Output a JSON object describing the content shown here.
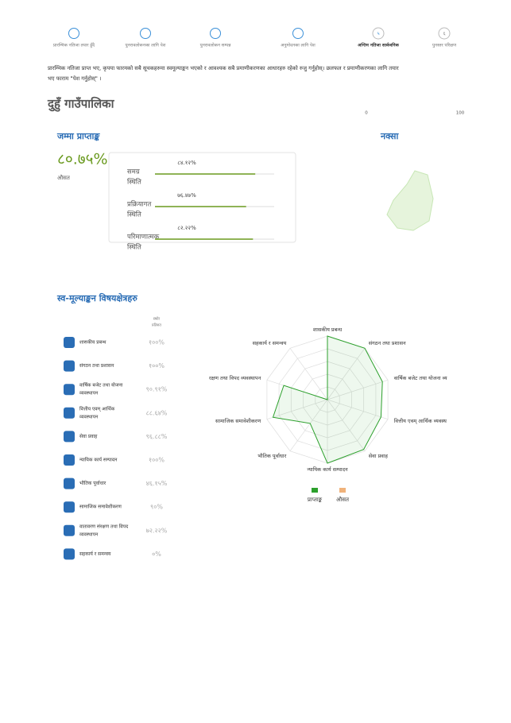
{
  "steps": [
    {
      "label": "प्रारम्भिक नतिजा तयार हुँदै"
    },
    {
      "label": "पुनरावलोकनका लागि पेश"
    },
    {
      "label": "पुनरावलोकन सम्पन्न"
    },
    {
      "label": "अनुमोदनका लागि पेश"
    },
    {
      "number": "५",
      "label": "अन्तिम नतिजा सार्वजनिक"
    },
    {
      "number": "६",
      "label": "पुनस्तर परिक्षण"
    }
  ],
  "intro": [
    "प्रारम्भिक नतिजा प्राप्त भए, कृपया फारमको सबै सूचकहरुमा स्वमूल्याङ्कन भएको र आवश्यक सबै प्रमाणीकरणका आधारहरु रहेको रुजु गर्नुहोस्। छलफल र प्रमाणीकरणका लागि तयार",
    "भए फाराम \"पेश गर्नुहोस्\" ।"
  ],
  "title": "दुहुँ गाउँपालिका",
  "scale": [
    "0",
    "100"
  ],
  "total": {
    "heading": "जम्मा प्राप्ताङ्क",
    "score": "८०.७५%",
    "caption": "औसत"
  },
  "bars": [
    {
      "label": [
        "समग्र",
        "स्थिति"
      ],
      "score": {
        "value": 84.12,
        "label": "८४.१२%"
      }
    },
    {
      "label": [
        "प्रक्रियागत",
        "स्थिति"
      ],
      "score": {
        "value": 76.47,
        "label": "७६.४७%"
      }
    },
    {
      "label": [
        "परिमाणात्मक",
        "स्थिति"
      ],
      "score": {
        "value": 82.22,
        "label": "८२.२२%"
      }
    }
  ],
  "map": {
    "heading": "नक्सा"
  },
  "areas": {
    "heading": "स्व-मूल्याङ्कन विषयक्षेत्रहरु",
    "column": [
      "स्कोर",
      "प्रतिशत"
    ],
    "items": [
      {
        "name": [
          "शासकीय प्रबन्ध"
        ],
        "score": {
          "value": 100,
          "label": "१००%"
        }
      },
      {
        "name": [
          "संगठन तथा प्रशासन"
        ],
        "score": {
          "value": 100,
          "label": "१००%"
        }
      },
      {
        "name": [
          "वार्षिक बजेट तथा योजना",
          "व्यवस्थापन"
        ],
        "score": {
          "value": 90.91,
          "label": "९०.९१%"
        }
      },
      {
        "name": [
          "वित्तीय एवम् आर्थिक",
          "व्यवस्थापन"
        ],
        "score": {
          "value": 88.64,
          "label": "८८.६४%"
        }
      },
      {
        "name": [
          "सेवा प्रवाह"
        ],
        "score": {
          "value": 96.88,
          "label": "९६.८८%"
        }
      },
      {
        "name": [
          "न्यायिक कार्य सम्पादन"
        ],
        "score": {
          "value": 100,
          "label": "१००%"
        }
      },
      {
        "name": [
          "भौतिक पूर्वाधार"
        ],
        "score": {
          "value": 46.15,
          "label": "४६.१५%"
        }
      },
      {
        "name": [
          "सामाजिक समावेशीकरण"
        ],
        "score": {
          "value": 90,
          "label": "९०%"
        }
      },
      {
        "name": [
          "वातावरण संरक्षण तथा विपद",
          "व्यवस्थापन"
        ],
        "score": {
          "value": 72.22,
          "label": "७२.२२%"
        }
      },
      {
        "name": [
          "सहकार्य र समन्वय"
        ],
        "score": {
          "value": 0,
          "label": "०%"
        }
      }
    ]
  },
  "radar": {
    "axes": [
      "शासकीय प्रबन्ध",
      "संगठन तथा प्रशासन",
      "वार्षिक बजेट तथा योजना व्य",
      "वित्तीय एवम् आर्थिक व्यवस्थ",
      "सेवा प्रवाह",
      "न्यायिक कार्य सम्पादन",
      "भौतिक पूर्वाधार",
      "सामाजिक समावेशीकरण",
      "रक्षण तथा विपद व्यवस्थापन",
      "सहकार्य र समन्वय"
    ],
    "series": [
      {
        "name": "प्राप्ताङ्क",
        "color": "#2ca02c"
      },
      {
        "name": "औसत",
        "color": "#f0b27a"
      }
    ]
  }
}
